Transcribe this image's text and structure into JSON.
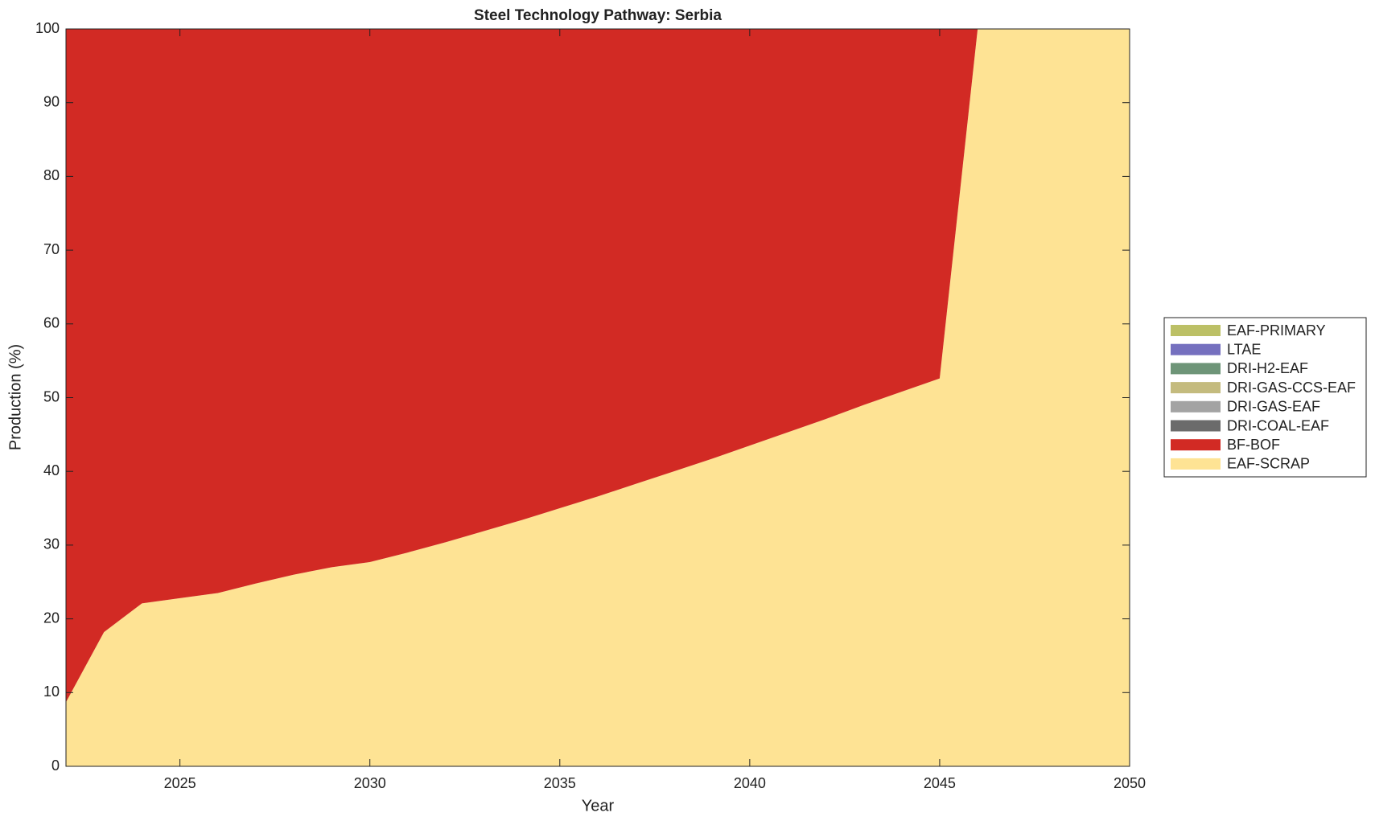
{
  "chart_data": {
    "type": "stacked-area",
    "title": "Steel Technology Pathway: Serbia",
    "x_label": "Year",
    "y_label": "Production (%)",
    "x": [
      2022,
      2023,
      2024,
      2025,
      2026,
      2027,
      2028,
      2029,
      2030,
      2031,
      2032,
      2033,
      2034,
      2035,
      2036,
      2037,
      2038,
      2039,
      2040,
      2041,
      2042,
      2043,
      2044,
      2045,
      2046,
      2047,
      2048,
      2049,
      2050
    ],
    "series": [
      {
        "name": "EAF-PRIMARY",
        "color": "#bcc066",
        "values": [
          0,
          0,
          0,
          0,
          0,
          0,
          0,
          0,
          0,
          0,
          0,
          0,
          0,
          0,
          0,
          0,
          0,
          0,
          0,
          0,
          0,
          0,
          0,
          0,
          0,
          0,
          0,
          0,
          0
        ]
      },
      {
        "name": "LTAE",
        "color": "#7570bf",
        "values": [
          0,
          0,
          0,
          0,
          0,
          0,
          0,
          0,
          0,
          0,
          0,
          0,
          0,
          0,
          0,
          0,
          0,
          0,
          0,
          0,
          0,
          0,
          0,
          0,
          0,
          0,
          0,
          0,
          0
        ]
      },
      {
        "name": "DRI-H2-EAF",
        "color": "#6e9578",
        "values": [
          0,
          0,
          0,
          0,
          0,
          0,
          0,
          0,
          0,
          0,
          0,
          0,
          0,
          0,
          0,
          0,
          0,
          0,
          0,
          0,
          0,
          0,
          0,
          0,
          0,
          0,
          0,
          0,
          0
        ]
      },
      {
        "name": "DRI-GAS-CCS-EAF",
        "color": "#c4bb7e",
        "values": [
          0,
          0,
          0,
          0,
          0,
          0,
          0,
          0,
          0,
          0,
          0,
          0,
          0,
          0,
          0,
          0,
          0,
          0,
          0,
          0,
          0,
          0,
          0,
          0,
          0,
          0,
          0,
          0,
          0
        ]
      },
      {
        "name": "DRI-GAS-EAF",
        "color": "#a3a3a3",
        "values": [
          0,
          0,
          0,
          0,
          0,
          0,
          0,
          0,
          0,
          0,
          0,
          0,
          0,
          0,
          0,
          0,
          0,
          0,
          0,
          0,
          0,
          0,
          0,
          0,
          0,
          0,
          0,
          0,
          0
        ]
      },
      {
        "name": "DRI-COAL-EAF",
        "color": "#6b6b6b",
        "values": [
          0,
          0,
          0,
          0,
          0,
          0,
          0,
          0,
          0,
          0,
          0,
          0,
          0,
          0,
          0,
          0,
          0,
          0,
          0,
          0,
          0,
          0,
          0,
          0,
          0,
          0,
          0,
          0,
          0
        ]
      },
      {
        "name": "BF-BOF",
        "color": "#d22a24",
        "values": [
          91.3,
          81.8,
          77.9,
          77.2,
          76.5,
          75.2,
          74,
          73,
          72.3,
          71,
          69.6,
          68.1,
          66.6,
          65,
          63.4,
          61.7,
          60,
          58.3,
          56.5,
          54.7,
          52.9,
          51,
          49.2,
          47.4,
          0,
          0,
          0,
          0,
          0
        ]
      },
      {
        "name": "EAF-SCRAP",
        "color": "#fee394",
        "values": [
          8.7,
          18.2,
          22.1,
          22.8,
          23.5,
          24.8,
          26,
          27,
          27.7,
          29,
          30.4,
          31.9,
          33.4,
          35,
          36.6,
          38.3,
          40,
          41.7,
          43.5,
          45.3,
          47.1,
          49,
          50.8,
          52.6,
          100,
          100,
          100,
          100,
          100
        ]
      }
    ],
    "xlim": [
      2022,
      2050
    ],
    "xticks": [
      2025,
      2030,
      2035,
      2040,
      2045,
      2050
    ],
    "ylim": [
      0,
      100
    ],
    "yticks": [
      0,
      10,
      20,
      30,
      40,
      50,
      60,
      70,
      80,
      90,
      100
    ],
    "grid": false,
    "legend": "outside-right"
  }
}
